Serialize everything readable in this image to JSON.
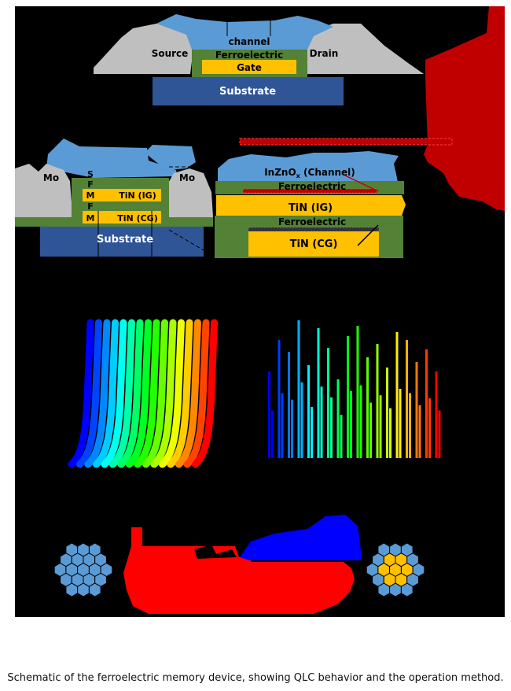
{
  "panel_a": {
    "channel": "channel",
    "source": "Source",
    "drain": "Drain",
    "ferroelectric": "Ferroelectric",
    "gate": "Gate",
    "substrate": "Substrate"
  },
  "panel_b": {
    "mo_left": "Mo",
    "mo_right": "Mo",
    "s": "S",
    "f_top": "F",
    "m_top": "M",
    "f_bottom": "F",
    "m_bottom": "M",
    "tin_ig": "TiN (IG)",
    "tin_cg": "TiN (CG)",
    "substrate": "Substrate"
  },
  "panel_c": {
    "channel_main": "InZnO",
    "channel_sub": "x",
    "channel_suffix": " (Channel)",
    "ferroelectric_top": "Ferroelectric",
    "tin_ig": "TiN (IG)",
    "ferroelectric_bottom": "Ferroelectric",
    "tin_cg": "TiN (CG)"
  },
  "caption": "Schematic of the ferroelectric memory device, showing QLC behavior and the operation method.",
  "colors": {
    "blue_light": "#5b9bd5",
    "grey": "#bfbfbf",
    "green": "#538135",
    "gold": "#ffc000",
    "navy": "#2f5597",
    "red": "#ff0000",
    "dark_red": "#c00000"
  }
}
